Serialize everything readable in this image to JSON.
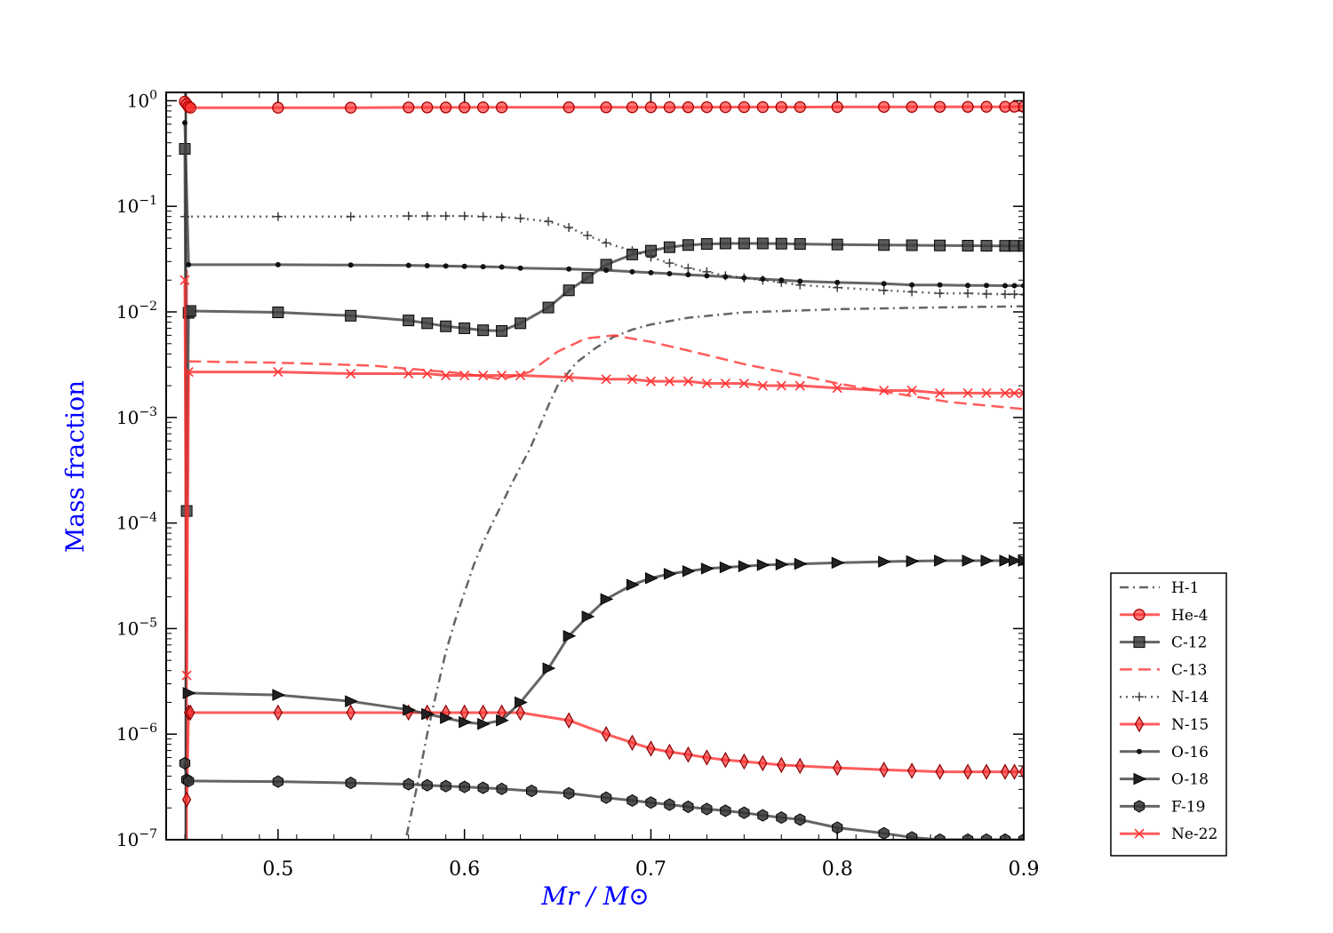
{
  "chart_data": {
    "type": "line",
    "title": "",
    "xlabel": "Mr / M⊙",
    "ylabel": "Mass fraction",
    "xlim": [
      0.44,
      0.9
    ],
    "ylim": [
      1e-07,
      1.2
    ],
    "yscale": "log",
    "xticks": [
      {
        "value": 0.5,
        "label": "0.5"
      },
      {
        "value": 0.6,
        "label": "0.6"
      },
      {
        "value": 0.7,
        "label": "0.7"
      },
      {
        "value": 0.8,
        "label": "0.8"
      },
      {
        "value": 0.9,
        "label": "0.9"
      }
    ],
    "yticks": [
      {
        "value": 1,
        "base": "10",
        "exp": "0"
      },
      {
        "value": 0.1,
        "base": "10",
        "exp": "−1"
      },
      {
        "value": 0.01,
        "base": "10",
        "exp": "−2"
      },
      {
        "value": 0.001,
        "base": "10",
        "exp": "−3"
      },
      {
        "value": 0.0001,
        "base": "10",
        "exp": "−4"
      },
      {
        "value": 1e-05,
        "base": "10",
        "exp": "−5"
      },
      {
        "value": 1e-06,
        "base": "10",
        "exp": "−6"
      },
      {
        "value": 1e-07,
        "base": "10",
        "exp": "−7"
      }
    ],
    "legend_position": "outside right, lower",
    "series": [
      {
        "name": "H-1",
        "color": "#3f3f3f",
        "dash": "dashdot",
        "marker": "none",
        "x": [
          0.569,
          0.575,
          0.58,
          0.585,
          0.59,
          0.595,
          0.6,
          0.605,
          0.61,
          0.615,
          0.62,
          0.625,
          0.63,
          0.635,
          0.64,
          0.645,
          0.65,
          0.66,
          0.67,
          0.68,
          0.69,
          0.7,
          0.72,
          0.75,
          0.8,
          0.85,
          0.9
        ],
        "y": [
          1.1e-07,
          3.5e-07,
          1e-06,
          2.5e-06,
          6e-06,
          1.2e-05,
          2.2e-05,
          4e-05,
          6.5e-05,
          0.0001,
          0.00015,
          0.00023,
          0.00034,
          0.0005,
          0.0008,
          0.0013,
          0.002,
          0.0033,
          0.0045,
          0.0058,
          0.0068,
          0.0076,
          0.0088,
          0.0099,
          0.0106,
          0.011,
          0.0113
        ]
      },
      {
        "name": "He-4",
        "color": "#ff3333",
        "dash": "solid",
        "marker": "circle",
        "x": [
          0.45,
          0.451,
          0.452,
          0.453,
          0.5,
          0.539,
          0.57,
          0.58,
          0.59,
          0.6,
          0.61,
          0.62,
          0.656,
          0.676,
          0.69,
          0.7,
          0.71,
          0.72,
          0.73,
          0.74,
          0.75,
          0.76,
          0.77,
          0.78,
          0.8,
          0.825,
          0.84,
          0.855,
          0.87,
          0.88,
          0.89,
          0.895,
          0.9
        ],
        "y": [
          0.98,
          0.93,
          0.88,
          0.86,
          0.86,
          0.86,
          0.865,
          0.865,
          0.865,
          0.865,
          0.866,
          0.866,
          0.866,
          0.867,
          0.868,
          0.868,
          0.869,
          0.869,
          0.87,
          0.87,
          0.871,
          0.871,
          0.872,
          0.872,
          0.873,
          0.874,
          0.875,
          0.876,
          0.876,
          0.877,
          0.877,
          0.878,
          0.878
        ]
      },
      {
        "name": "C-12",
        "color": "#3f3f3f",
        "dash": "solid",
        "marker": "square",
        "x": [
          0.45,
          0.451,
          0.452,
          0.453,
          0.5,
          0.539,
          0.57,
          0.58,
          0.59,
          0.6,
          0.61,
          0.62,
          0.63,
          0.645,
          0.656,
          0.666,
          0.676,
          0.69,
          0.7,
          0.71,
          0.72,
          0.73,
          0.74,
          0.75,
          0.76,
          0.77,
          0.78,
          0.8,
          0.825,
          0.84,
          0.855,
          0.87,
          0.88,
          0.89,
          0.895,
          0.9
        ],
        "y": [
          0.35,
          0.00013,
          0.0098,
          0.0102,
          0.0099,
          0.0092,
          0.0083,
          0.0078,
          0.0073,
          0.007,
          0.0067,
          0.0066,
          0.0078,
          0.011,
          0.016,
          0.021,
          0.028,
          0.035,
          0.038,
          0.041,
          0.043,
          0.044,
          0.0445,
          0.0445,
          0.0445,
          0.0443,
          0.044,
          0.0435,
          0.043,
          0.0428,
          0.0426,
          0.0424,
          0.0423,
          0.0422,
          0.0422,
          0.0422
        ]
      },
      {
        "name": "C-13",
        "color": "#ff3333",
        "dash": "dashed",
        "marker": "none",
        "x": [
          0.452,
          0.5,
          0.55,
          0.58,
          0.6,
          0.62,
          0.635,
          0.65,
          0.665,
          0.68,
          0.7,
          0.72,
          0.75,
          0.78,
          0.8,
          0.83,
          0.86,
          0.9
        ],
        "y": [
          0.0034,
          0.0033,
          0.0031,
          0.0028,
          0.0026,
          0.0023,
          0.0027,
          0.0042,
          0.0056,
          0.006,
          0.0052,
          0.0043,
          0.0032,
          0.0025,
          0.0021,
          0.0017,
          0.0014,
          0.0012
        ]
      },
      {
        "name": "N-14",
        "color": "#3f3f3f",
        "dash": "dotted",
        "marker": "plus",
        "x": [
          0.45,
          0.5,
          0.539,
          0.57,
          0.58,
          0.59,
          0.6,
          0.61,
          0.62,
          0.63,
          0.645,
          0.656,
          0.666,
          0.676,
          0.69,
          0.7,
          0.71,
          0.72,
          0.73,
          0.74,
          0.75,
          0.76,
          0.77,
          0.78,
          0.8,
          0.825,
          0.84,
          0.855,
          0.87,
          0.88,
          0.89,
          0.895,
          0.9
        ],
        "y": [
          0.08,
          0.08,
          0.08,
          0.081,
          0.081,
          0.081,
          0.081,
          0.08,
          0.079,
          0.077,
          0.072,
          0.063,
          0.053,
          0.045,
          0.038,
          0.033,
          0.029,
          0.026,
          0.024,
          0.022,
          0.021,
          0.02,
          0.019,
          0.018,
          0.017,
          0.016,
          0.0155,
          0.015,
          0.015,
          0.0148,
          0.0147,
          0.0147,
          0.0146
        ]
      },
      {
        "name": "N-15",
        "color": "#ff3333",
        "dash": "solid",
        "marker": "diamond",
        "x": [
          0.451,
          0.452,
          0.453,
          0.5,
          0.539,
          0.57,
          0.58,
          0.59,
          0.6,
          0.61,
          0.62,
          0.63,
          0.656,
          0.676,
          0.69,
          0.7,
          0.71,
          0.72,
          0.73,
          0.74,
          0.75,
          0.76,
          0.77,
          0.78,
          0.8,
          0.825,
          0.84,
          0.855,
          0.87,
          0.88,
          0.89,
          0.895,
          0.9
        ],
        "y": [
          2.4e-07,
          1.6e-06,
          1.6e-06,
          1.6e-06,
          1.6e-06,
          1.6e-06,
          1.6e-06,
          1.6e-06,
          1.6e-06,
          1.6e-06,
          1.6e-06,
          1.6e-06,
          1.35e-06,
          1e-06,
          8.3e-07,
          7.3e-07,
          6.8e-07,
          6.4e-07,
          6e-07,
          5.7e-07,
          5.5e-07,
          5.3e-07,
          5.1e-07,
          5e-07,
          4.8e-07,
          4.6e-07,
          4.5e-07,
          4.4e-07,
          4.4e-07,
          4.4e-07,
          4.4e-07,
          4.4e-07,
          4.4e-07
        ]
      },
      {
        "name": "O-16",
        "color": "#3f3f3f",
        "dash": "solid",
        "marker": "dot",
        "x": [
          0.45,
          0.452,
          0.5,
          0.539,
          0.57,
          0.58,
          0.59,
          0.6,
          0.61,
          0.62,
          0.63,
          0.656,
          0.676,
          0.69,
          0.7,
          0.71,
          0.72,
          0.73,
          0.74,
          0.75,
          0.76,
          0.77,
          0.78,
          0.8,
          0.825,
          0.84,
          0.855,
          0.87,
          0.88,
          0.89,
          0.895,
          0.9
        ],
        "y": [
          0.62,
          0.028,
          0.028,
          0.0278,
          0.0276,
          0.0274,
          0.0272,
          0.027,
          0.0268,
          0.0266,
          0.026,
          0.0255,
          0.0248,
          0.024,
          0.0235,
          0.023,
          0.0225,
          0.022,
          0.0215,
          0.021,
          0.0205,
          0.02,
          0.0195,
          0.019,
          0.0185,
          0.018,
          0.018,
          0.0178,
          0.0178,
          0.0177,
          0.0177,
          0.0177
        ]
      },
      {
        "name": "O-18",
        "color": "#3f3f3f",
        "dash": "solid",
        "marker": "triangle",
        "x": [
          0.452,
          0.5,
          0.539,
          0.57,
          0.58,
          0.59,
          0.6,
          0.61,
          0.62,
          0.63,
          0.645,
          0.656,
          0.666,
          0.676,
          0.69,
          0.7,
          0.71,
          0.72,
          0.73,
          0.74,
          0.75,
          0.76,
          0.77,
          0.78,
          0.8,
          0.825,
          0.84,
          0.855,
          0.87,
          0.88,
          0.89,
          0.895,
          0.9
        ],
        "y": [
          2.45e-06,
          2.35e-06,
          2.05e-06,
          1.7e-06,
          1.55e-06,
          1.42e-06,
          1.3e-06,
          1.25e-06,
          1.35e-06,
          2e-06,
          4.2e-06,
          8.5e-06,
          1.3e-05,
          1.9e-05,
          2.6e-05,
          3e-05,
          3.3e-05,
          3.5e-05,
          3.7e-05,
          3.8e-05,
          3.9e-05,
          4e-05,
          4.05e-05,
          4.1e-05,
          4.2e-05,
          4.3e-05,
          4.35e-05,
          4.4e-05,
          4.4e-05,
          4.4e-05,
          4.4e-05,
          4.4e-05,
          4.4e-05
        ]
      },
      {
        "name": "F-19",
        "color": "#3f3f3f",
        "dash": "solid",
        "marker": "hexagon",
        "x": [
          0.45,
          0.451,
          0.452,
          0.5,
          0.539,
          0.57,
          0.58,
          0.59,
          0.6,
          0.61,
          0.62,
          0.636,
          0.656,
          0.676,
          0.69,
          0.7,
          0.71,
          0.72,
          0.73,
          0.74,
          0.75,
          0.76,
          0.77,
          0.78,
          0.8,
          0.825,
          0.84,
          0.855,
          0.87,
          0.88,
          0.89,
          0.9
        ],
        "y": [
          5.3e-07,
          3.7e-07,
          3.6e-07,
          3.55e-07,
          3.45e-07,
          3.35e-07,
          3.28e-07,
          3.22e-07,
          3.16e-07,
          3.1e-07,
          3.03e-07,
          2.9e-07,
          2.75e-07,
          2.5e-07,
          2.35e-07,
          2.25e-07,
          2.15e-07,
          2.05e-07,
          1.95e-07,
          1.88e-07,
          1.8e-07,
          1.7e-07,
          1.62e-07,
          1.55e-07,
          1.3e-07,
          1.15e-07,
          1.05e-07,
          1e-07,
          1e-07,
          1e-07,
          1e-07,
          1e-07
        ]
      },
      {
        "name": "Ne-22",
        "color": "#ff3333",
        "dash": "solid",
        "marker": "x",
        "x": [
          0.45,
          0.451,
          0.452,
          0.5,
          0.539,
          0.57,
          0.58,
          0.59,
          0.6,
          0.61,
          0.62,
          0.63,
          0.656,
          0.676,
          0.69,
          0.7,
          0.71,
          0.72,
          0.73,
          0.74,
          0.75,
          0.76,
          0.77,
          0.78,
          0.8,
          0.825,
          0.84,
          0.855,
          0.87,
          0.88,
          0.89,
          0.895,
          0.9
        ],
        "y": [
          0.02,
          3.6e-06,
          0.0027,
          0.0027,
          0.0026,
          0.0026,
          0.0026,
          0.0025,
          0.0025,
          0.0025,
          0.0025,
          0.0025,
          0.0024,
          0.0023,
          0.0023,
          0.0022,
          0.0022,
          0.0022,
          0.0021,
          0.0021,
          0.0021,
          0.002,
          0.002,
          0.002,
          0.0019,
          0.0018,
          0.0018,
          0.0017,
          0.0017,
          0.0017,
          0.0017,
          0.0017,
          0.0017
        ]
      }
    ]
  }
}
